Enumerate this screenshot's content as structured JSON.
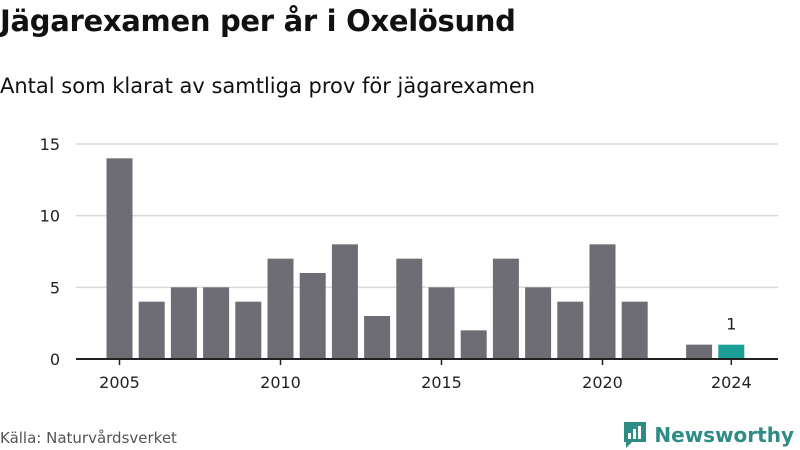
{
  "header": {
    "title": "Jägarexamen per år i Oxelösund",
    "subtitle": "Antal som klarat av samtliga prov för jägarexamen"
  },
  "footer": {
    "source": "Källa: Naturvårdsverket",
    "brand": "Newsworthy",
    "brand_icon": "newsworthy-logo-icon"
  },
  "colors": {
    "bar": "#6e6d73",
    "highlight": "#1a9e96",
    "grid": "#d9d9d9",
    "axis": "#222222",
    "brand": "#2e8b86"
  },
  "chart_data": {
    "type": "bar",
    "title": "Jägarexamen per år i Oxelösund",
    "subtitle": "Antal som klarat av samtliga prov för jägarexamen",
    "xlabel": "",
    "ylabel": "",
    "ylim": [
      0,
      15
    ],
    "yticks": [
      0,
      5,
      10,
      15
    ],
    "xticks": [
      2005,
      2010,
      2015,
      2020,
      2024
    ],
    "grid": true,
    "legend": "none",
    "categories": [
      2005,
      2006,
      2007,
      2008,
      2009,
      2010,
      2011,
      2012,
      2013,
      2014,
      2015,
      2016,
      2017,
      2018,
      2019,
      2020,
      2021,
      2022,
      2023,
      2024
    ],
    "values": [
      14,
      4,
      5,
      5,
      4,
      7,
      6,
      8,
      3,
      7,
      5,
      2,
      7,
      5,
      4,
      8,
      4,
      0,
      1,
      1
    ],
    "highlight": {
      "category": 2024,
      "label": "1"
    }
  }
}
